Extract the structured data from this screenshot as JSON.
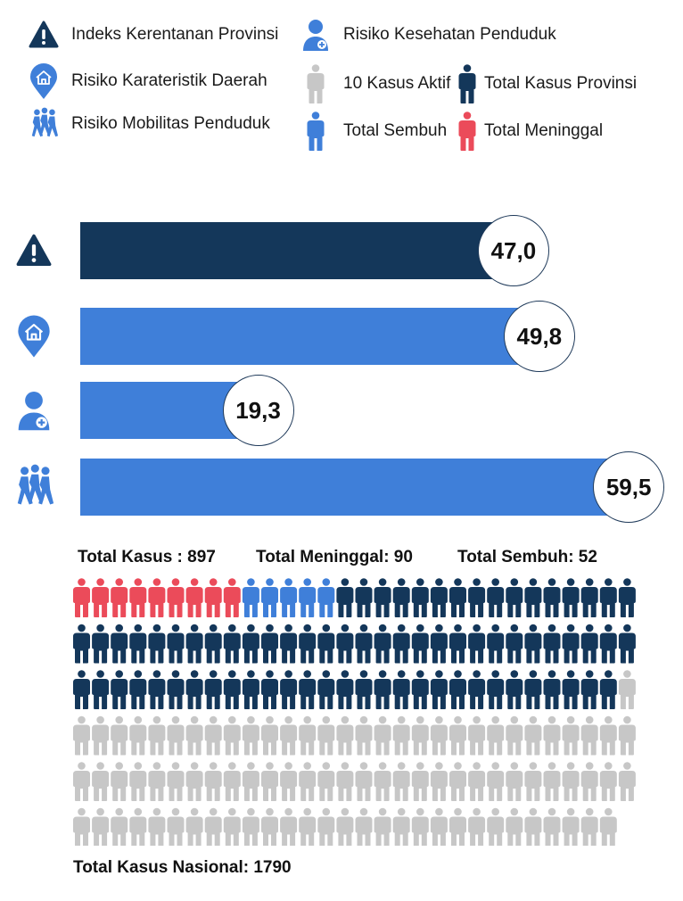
{
  "legend": {
    "items": [
      {
        "id": "index",
        "label": "Indeks Kerentanan Provinsi",
        "icon": "warning-icon"
      },
      {
        "id": "area",
        "label": "Risiko Karateristik Daerah",
        "icon": "home-pin-icon"
      },
      {
        "id": "mobility",
        "label": "Risiko Mobilitas Penduduk",
        "icon": "people-walking-icon"
      },
      {
        "id": "health",
        "label": "Risiko Kesehatan Penduduk",
        "icon": "health-person-icon"
      },
      {
        "id": "active",
        "label": "10 Kasus Aktif",
        "icon": "person-grey-icon"
      },
      {
        "id": "recovered",
        "label": "Total Sembuh",
        "icon": "person-blue-icon"
      },
      {
        "id": "province_total",
        "label": "Total Kasus Provinsi",
        "icon": "person-navy-icon"
      },
      {
        "id": "deaths",
        "label": "Total Meninggal",
        "icon": "person-red-icon"
      }
    ]
  },
  "colors": {
    "navy": "#14375a",
    "blue": "#3f7fd9",
    "red": "#eb4b5a",
    "grey": "#c7c7c7"
  },
  "chart_data": [
    {
      "type": "bar",
      "orientation": "horizontal",
      "categories": [
        "Indeks Kerentanan Provinsi",
        "Risiko Karateristik Daerah",
        "Risiko Kesehatan Penduduk",
        "Risiko Mobilitas Penduduk"
      ],
      "values": [
        47.0,
        49.8,
        19.3,
        59.5
      ],
      "value_labels": [
        "47,0",
        "49,8",
        "19,3",
        "59,5"
      ],
      "bar_colors": [
        "#14375a",
        "#3f7fd9",
        "#3f7fd9",
        "#3f7fd9"
      ],
      "icons": [
        "warning-icon",
        "home-pin-icon",
        "health-person-icon",
        "people-walking-icon"
      ],
      "xlim": [
        0,
        65
      ]
    },
    {
      "type": "pictograph",
      "units_per_icon": 10,
      "icons_per_row": 30,
      "segments": [
        {
          "label": "Total Meninggal",
          "icons": 9,
          "color": "#eb4b5a"
        },
        {
          "label": "Total Sembuh",
          "icons": 5,
          "color": "#3f7fd9"
        },
        {
          "label": "Total Kasus Provinsi",
          "icons": 75,
          "color": "#14375a"
        },
        {
          "label": "Total Kasus Nasional",
          "icons": 90,
          "color": "#c7c7c7"
        }
      ]
    }
  ],
  "stats": {
    "total_kasus": "Total Kasus : 897",
    "total_meninggal": "Total Meninggal: 90",
    "total_sembuh": "Total Sembuh: 52",
    "total_nasional": "Total Kasus Nasional: 1790"
  }
}
